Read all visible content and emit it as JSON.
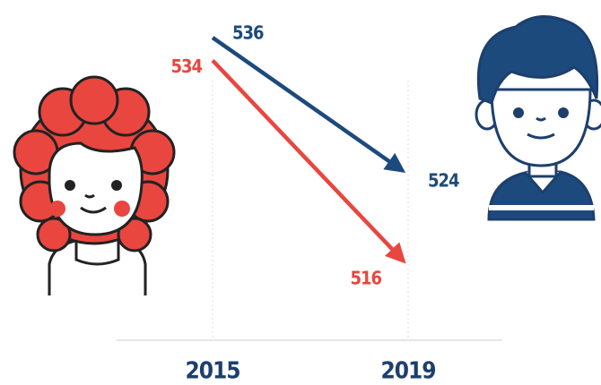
{
  "chart_data": {
    "type": "line",
    "categories": [
      "2015",
      "2019"
    ],
    "series": [
      {
        "color": "#1d4a7c",
        "values": [
          536,
          524
        ]
      },
      {
        "color": "#e8463f",
        "values": [
          534,
          516
        ]
      }
    ],
    "ylim": [
      510,
      540
    ]
  }
}
